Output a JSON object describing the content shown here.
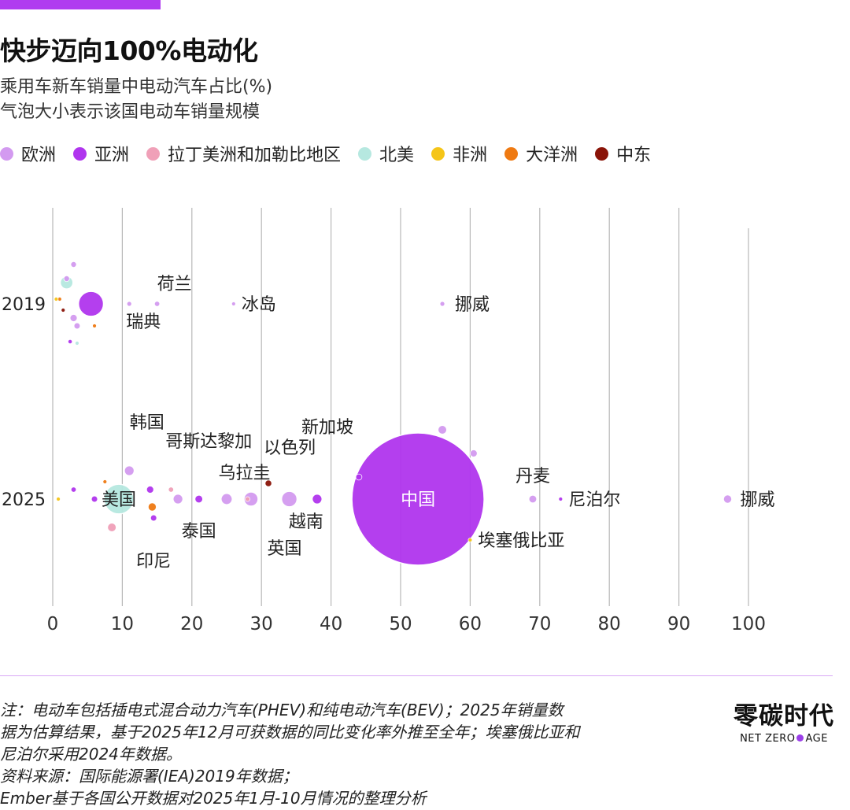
{
  "header": {
    "title": "快步迈向100%电动化",
    "subtitle1": "乘用车新车销量中电动汽车占比(%)",
    "subtitle2": "气泡大小表示该国电动车销量规模"
  },
  "legend": [
    {
      "label": "欧洲",
      "color": "#d39af0"
    },
    {
      "label": "亚洲",
      "color": "#b035ee"
    },
    {
      "label": "拉丁美洲和加勒比地区",
      "color": "#f0a0b8"
    },
    {
      "label": "北美",
      "color": "#b6e8e0"
    },
    {
      "label": "非洲",
      "color": "#f5c518"
    },
    {
      "label": "大洋洲",
      "color": "#ef7a12"
    },
    {
      "label": "中东",
      "color": "#8a1408"
    }
  ],
  "chart_data": {
    "type": "scatter",
    "title": "快步迈向100%电动化",
    "xlabel": "",
    "ylabel": "",
    "xlim": [
      0,
      100
    ],
    "x_ticks": [
      0,
      10,
      20,
      30,
      40,
      50,
      60,
      70,
      80,
      90,
      100
    ],
    "y_categories": [
      "2019",
      "2025"
    ],
    "grid": true,
    "size_meaning": "该国电动车销量规模",
    "series": [
      {
        "name": "2019",
        "points": [
          {
            "label": "",
            "x": 5.5,
            "region": "亚洲",
            "size": 5.3
          },
          {
            "label": "",
            "x": 2.0,
            "region": "北美",
            "size": 2.7
          },
          {
            "label": "瑞典",
            "x": 11,
            "region": "欧洲",
            "size": 1.0
          },
          {
            "label": "荷兰",
            "x": 15,
            "region": "欧洲",
            "size": 1.1
          },
          {
            "label": "冰岛",
            "x": 26,
            "region": "欧洲",
            "size": 0.4
          },
          {
            "label": "挪威",
            "x": 56,
            "region": "欧洲",
            "size": 1.0
          },
          {
            "label": "",
            "x": 3,
            "region": "欧洲",
            "size": 1.5
          },
          {
            "label": "",
            "x": 2,
            "region": "欧洲",
            "size": 1.2
          },
          {
            "label": "",
            "x": 3.5,
            "region": "欧洲",
            "size": 1.3
          },
          {
            "label": "",
            "x": 3,
            "region": "欧洲",
            "size": 1.2
          },
          {
            "label": "",
            "x": 2.5,
            "region": "亚洲",
            "size": 0.9
          },
          {
            "label": "",
            "x": 3.5,
            "region": "北美",
            "size": 0.8
          },
          {
            "label": "",
            "x": 1,
            "region": "大洋洲",
            "size": 0.6
          },
          {
            "label": "",
            "x": 6,
            "region": "大洋洲",
            "size": 0.6
          },
          {
            "label": "",
            "x": 1.5,
            "region": "中东",
            "size": 0.5
          },
          {
            "label": "",
            "x": 0.5,
            "region": "非洲",
            "size": 0.4
          }
        ]
      },
      {
        "name": "2025",
        "points": [
          {
            "label": "中国",
            "x": 52.5,
            "region": "亚洲",
            "size": 28
          },
          {
            "label": "美国",
            "x": 9.5,
            "region": "北美",
            "size": 6.3
          },
          {
            "label": "韩国",
            "x": 14,
            "region": "亚洲",
            "size": 1.5
          },
          {
            "label": "哥斯达黎加",
            "x": 17,
            "region": "拉丁美洲和加勒比地区",
            "size": 1.1
          },
          {
            "label": "印尼",
            "x": 14.5,
            "region": "亚洲",
            "size": 1.3
          },
          {
            "label": "",
            "x": 14.3,
            "region": "大洋洲",
            "size": 1.7
          },
          {
            "label": "泰国",
            "x": 21,
            "region": "亚洲",
            "size": 1.6
          },
          {
            "label": "乌拉圭",
            "x": 28,
            "region": "拉丁美洲和加勒比地区",
            "size": 1.0
          },
          {
            "label": "以色列",
            "x": 31,
            "region": "中东",
            "size": 1.4
          },
          {
            "label": "英国",
            "x": 34,
            "region": "欧洲",
            "size": 3.3
          },
          {
            "label": "越南",
            "x": 38,
            "region": "亚洲",
            "size": 2.0
          },
          {
            "label": "新加坡",
            "x": 44,
            "region": "亚洲",
            "size": 1.3
          },
          {
            "label": "丹麦",
            "x": 69,
            "region": "欧洲",
            "size": 1.6
          },
          {
            "label": "尼泊尔",
            "x": 73,
            "region": "亚洲",
            "size": 0.8
          },
          {
            "label": "挪威",
            "x": 97,
            "region": "欧洲",
            "size": 1.7
          },
          {
            "label": "埃塞俄比亚",
            "x": 60,
            "region": "非洲",
            "size": 0.6
          },
          {
            "label": "",
            "x": 28.5,
            "region": "欧洲",
            "size": 3.0
          },
          {
            "label": "",
            "x": 25,
            "region": "欧洲",
            "size": 2.4
          },
          {
            "label": "",
            "x": 18,
            "region": "欧洲",
            "size": 2.0
          },
          {
            "label": "",
            "x": 11,
            "region": "欧洲",
            "size": 2.0
          },
          {
            "label": "",
            "x": 56,
            "region": "欧洲",
            "size": 1.8
          },
          {
            "label": "",
            "x": 60.5,
            "region": "欧洲",
            "size": 1.5
          },
          {
            "label": "",
            "x": 8.5,
            "region": "拉丁美洲和加勒比地区",
            "size": 1.8
          },
          {
            "label": "",
            "x": 6,
            "region": "亚洲",
            "size": 1.3
          },
          {
            "label": "",
            "x": 3,
            "region": "亚洲",
            "size": 1.1
          },
          {
            "label": "",
            "x": 0.8,
            "region": "非洲",
            "size": 0.5
          },
          {
            "label": "",
            "x": 7.5,
            "region": "大洋洲",
            "size": 0.7
          }
        ]
      }
    ]
  },
  "notes": {
    "line1": "注：电动车包括插电式混合动力汽车(PHEV)和纯电动汽车(BEV)；2025年销量数",
    "line2": "据为估算结果，基于2025年12月可获数据的同比变化率外推至全年；埃塞俄比亚和",
    "line3": "尼泊尔采用2024年数据。",
    "line4": "资料来源：国际能源署(IEA)2019年数据；",
    "line5": "Ember基于各国公开数据对2025年1月-10月情况的整理分析"
  },
  "logo": {
    "main": "零碳时代",
    "sub_left": "NET ZERO",
    "sub_right": "AGE"
  }
}
